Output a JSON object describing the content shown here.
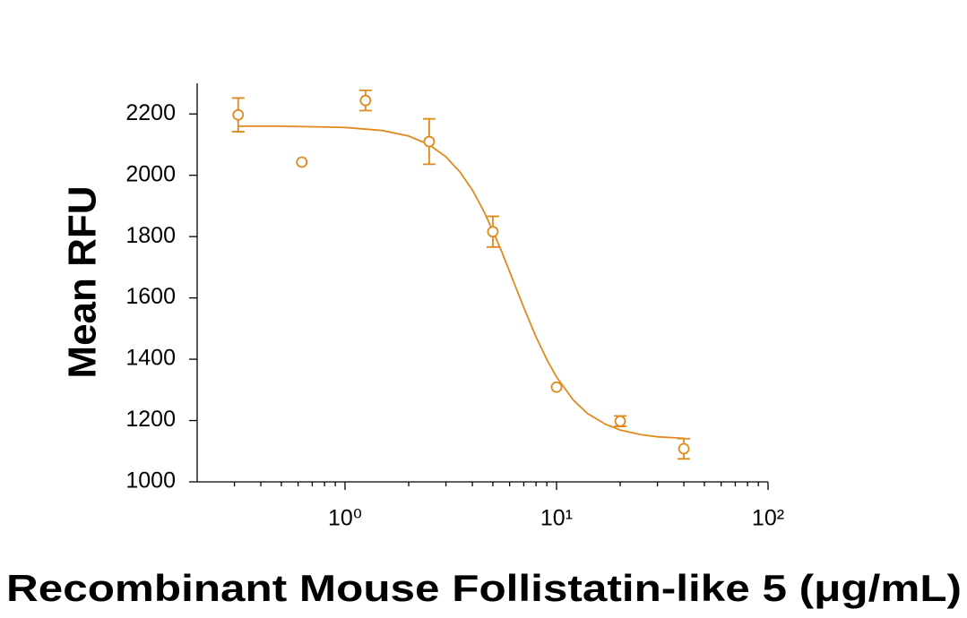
{
  "chart_data": {
    "type": "scatter",
    "x_label": "Recombinant Mouse Follistatin-like 5 (μg/mL)",
    "y_label": "Mean RFU",
    "x": [
      0.3125,
      0.625,
      1.25,
      2.5,
      5,
      10,
      20,
      40
    ],
    "values": [
      2197,
      2043,
      2244,
      2110,
      1816,
      1309,
      1198,
      1108
    ],
    "errors": [
      55,
      null,
      33,
      74,
      50,
      null,
      17,
      33
    ],
    "fit": {
      "x": [
        0.3125,
        0.5,
        1,
        1.5,
        2,
        2.5,
        3,
        3.5,
        4,
        4.5,
        5,
        5.5,
        6,
        6.5,
        7,
        8,
        9,
        10,
        12,
        14,
        17,
        20,
        25,
        30,
        40
      ],
      "y": [
        2160,
        2160,
        2156,
        2146,
        2128,
        2100,
        2060,
        2010,
        1952,
        1887,
        1819,
        1752,
        1686,
        1625,
        1569,
        1473,
        1399,
        1342,
        1267,
        1223,
        1188,
        1169,
        1154,
        1147,
        1142
      ]
    },
    "color": "#e08a1e",
    "x_log": true,
    "xlim": [
      0.2,
      100
    ],
    "xticks": [
      {
        "value": 1,
        "label": "10⁰"
      },
      {
        "value": 10,
        "label": "10¹"
      },
      {
        "value": 100,
        "label": "10²"
      }
    ],
    "xminorticks": [
      0.3,
      0.4,
      0.5,
      0.6,
      0.7,
      0.8,
      0.9,
      2,
      3,
      4,
      5,
      6,
      7,
      8,
      9,
      20,
      30,
      40,
      50,
      60,
      70,
      80,
      90
    ],
    "ylim": [
      1000,
      2300
    ],
    "yticks": [
      1000,
      1200,
      1400,
      1600,
      1800,
      2000,
      2200
    ]
  }
}
